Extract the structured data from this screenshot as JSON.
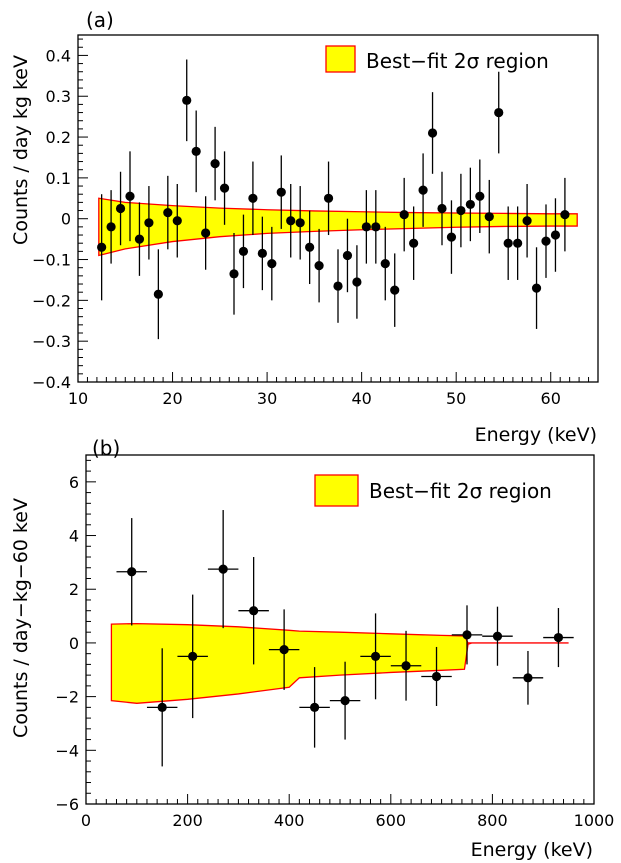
{
  "chart_data": [
    {
      "type": "scatter",
      "panel_label": "(a)",
      "xlabel": "Energy (keV)",
      "ylabel": "Counts / day kg keV",
      "xlim": [
        10,
        65
      ],
      "ylim": [
        -0.4,
        0.45
      ],
      "x_ticks": [
        10,
        20,
        30,
        40,
        50,
        60
      ],
      "x_tick_labels": [
        "10",
        "20",
        "30",
        "40",
        "50",
        "60"
      ],
      "y_ticks": [
        -0.4,
        -0.3,
        -0.2,
        -0.1,
        0,
        0.1,
        0.2,
        0.3,
        0.4
      ],
      "y_tick_labels": [
        "−0.4",
        "−0.3",
        "−0.2",
        "−0.1",
        "0",
        "0.1",
        "0.2",
        "0.3",
        "0.4"
      ],
      "legend": {
        "label": "Best−fit 2σ region",
        "position": "top-right"
      },
      "band": {
        "color_fill": "#ffff00",
        "color_edge": "#ff0000",
        "x": [
          12.2,
          15,
          20,
          25,
          30,
          35,
          40,
          45,
          50,
          55,
          60,
          62.8
        ],
        "upper": [
          0.05,
          0.04,
          0.032,
          0.026,
          0.022,
          0.019,
          0.017,
          0.015,
          0.014,
          0.013,
          0.012,
          0.012
        ],
        "lower": [
          -0.09,
          -0.074,
          -0.056,
          -0.044,
          -0.036,
          -0.031,
          -0.027,
          -0.024,
          -0.021,
          -0.019,
          -0.018,
          -0.018
        ]
      },
      "series": [
        {
          "x": [
            12.5,
            13.5,
            14.5,
            15.5,
            16.5,
            17.5,
            18.5,
            19.5,
            20.5,
            21.5,
            22.5,
            23.5,
            24.5,
            25.5,
            26.5,
            27.5,
            28.5,
            29.5,
            30.5,
            31.5,
            32.5,
            33.5,
            34.5,
            35.5,
            36.5,
            37.5,
            38.5,
            39.5,
            40.5,
            41.5,
            42.5,
            43.5,
            44.5,
            45.5,
            46.5,
            47.5,
            48.5,
            49.5,
            50.5,
            51.5,
            52.5,
            53.5,
            54.5,
            55.5,
            56.5,
            57.5,
            58.5,
            59.5,
            60.5,
            61.5
          ],
          "y": [
            -0.07,
            -0.02,
            0.025,
            0.055,
            -0.05,
            -0.01,
            -0.185,
            0.015,
            -0.005,
            0.29,
            0.165,
            -0.035,
            0.135,
            0.075,
            -0.135,
            -0.08,
            0.05,
            -0.085,
            -0.11,
            0.065,
            -0.005,
            -0.01,
            -0.07,
            -0.115,
            0.05,
            -0.165,
            -0.09,
            -0.155,
            -0.02,
            -0.02,
            -0.11,
            -0.175,
            0.01,
            -0.06,
            0.07,
            0.21,
            0.025,
            -0.045,
            0.02,
            0.035,
            0.055,
            0.005,
            0.26,
            -0.06,
            -0.06,
            -0.005,
            -0.17,
            -0.055,
            -0.04,
            0.01
          ],
          "err": [
            0.13,
            0.09,
            0.09,
            0.11,
            0.09,
            0.09,
            0.11,
            0.09,
            0.09,
            0.1,
            0.1,
            0.09,
            0.09,
            0.09,
            0.1,
            0.09,
            0.09,
            0.09,
            0.09,
            0.09,
            0.09,
            0.09,
            0.09,
            0.09,
            0.09,
            0.09,
            0.09,
            0.09,
            0.09,
            0.09,
            0.09,
            0.09,
            0.09,
            0.09,
            0.09,
            0.1,
            0.09,
            0.09,
            0.09,
            0.09,
            0.09,
            0.09,
            0.1,
            0.09,
            0.09,
            0.09,
            0.1,
            0.09,
            0.09,
            0.09
          ]
        }
      ]
    },
    {
      "type": "scatter",
      "panel_label": "(b)",
      "xlabel": "Energy (keV)",
      "ylabel": "Counts / day−kg−60 keV",
      "xlim": [
        0,
        1000
      ],
      "ylim": [
        -6,
        7
      ],
      "x_ticks": [
        0,
        200,
        400,
        600,
        800,
        1000
      ],
      "x_tick_labels": [
        "0",
        "200",
        "400",
        "600",
        "800",
        "1000"
      ],
      "y_ticks": [
        -6,
        -4,
        -2,
        0,
        2,
        4,
        6
      ],
      "y_tick_labels": [
        "−6",
        "−4",
        "−2",
        "0",
        "2",
        "4",
        "6"
      ],
      "legend": {
        "label": "Best−fit 2σ region",
        "position": "top-right"
      },
      "band": {
        "color_fill": "#ffff00",
        "color_edge": "#ff0000",
        "x": [
          50,
          100,
          200,
          300,
          400,
          420,
          500,
          600,
          700,
          745,
          752,
          760,
          800,
          900,
          950
        ],
        "upper": [
          0.7,
          0.72,
          0.68,
          0.6,
          0.47,
          0.44,
          0.4,
          0.34,
          0.28,
          0.26,
          0.0,
          0.0,
          0.0,
          0.0,
          0.0
        ],
        "lower": [
          -2.15,
          -2.25,
          -2.1,
          -1.9,
          -1.65,
          -1.3,
          -1.2,
          -1.1,
          -1.02,
          -0.98,
          -0.05,
          0.0,
          0.0,
          0.0,
          0.0
        ]
      },
      "series": [
        {
          "x": [
            90,
            150,
            210,
            270,
            330,
            390,
            450,
            510,
            570,
            630,
            690,
            750,
            810,
            870,
            930
          ],
          "y": [
            2.65,
            -2.4,
            -0.5,
            2.75,
            1.2,
            -0.25,
            -2.4,
            -2.15,
            -0.5,
            -0.85,
            -1.25,
            0.3,
            0.25,
            -1.3,
            0.2
          ],
          "err": [
            2.0,
            2.2,
            2.3,
            2.2,
            2.0,
            1.5,
            1.5,
            1.45,
            1.6,
            1.3,
            1.1,
            1.1,
            1.1,
            1.0,
            1.1
          ],
          "xerr": [
            30,
            30,
            30,
            30,
            30,
            30,
            30,
            30,
            30,
            30,
            30,
            30,
            30,
            30,
            30
          ]
        }
      ]
    }
  ]
}
